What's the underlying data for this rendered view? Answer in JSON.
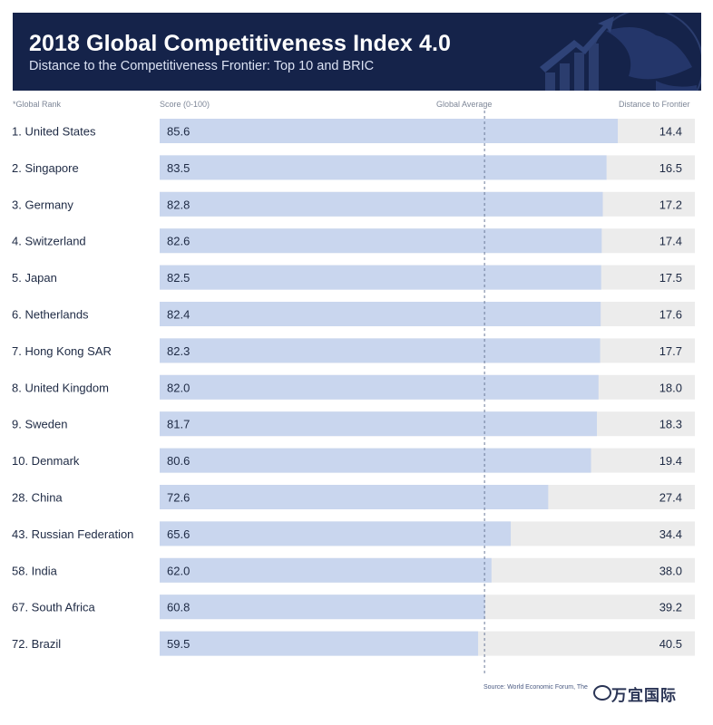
{
  "header": {
    "title": "2018 Global Competitiveness Index 4.0",
    "subtitle": "Distance to the Competitiveness Frontier: Top 10 and BRIC"
  },
  "columns": {
    "rank": "*Global Rank",
    "score": "Score (0-100)",
    "average": "Global Average",
    "distance": "Distance to Frontier"
  },
  "source": "Source: World Economic Forum, The",
  "watermark": "万宜国际",
  "chart_data": {
    "type": "bar",
    "orientation": "horizontal",
    "stacked": true,
    "xlim": [
      0,
      100
    ],
    "global_average": 60.7,
    "categories": [
      "1. United States",
      "2. Singapore",
      "3. Germany",
      "4. Switzerland",
      "5. Japan",
      "6. Netherlands",
      "7. Hong Kong SAR",
      "8. United Kingdom",
      "9. Sweden",
      "10. Denmark",
      "28. China",
      "43. Russian Federation",
      "58. India",
      "67. South Africa",
      "72. Brazil"
    ],
    "series": [
      {
        "values": [
          85.6,
          83.5,
          82.8,
          82.6,
          82.5,
          82.4,
          82.3,
          82.0,
          81.7,
          80.6,
          72.6,
          65.6,
          62.0,
          60.8,
          59.5
        ],
        "labels": [
          "85.6",
          "83.5",
          "82.8",
          "82.6",
          "82.5",
          "82.4",
          "82.3",
          "82.0",
          "81.7",
          "80.6",
          "72.6",
          "65.6",
          "62.0",
          "60.8",
          "59.5"
        ],
        "color": "#c9d6ee"
      },
      {
        "values": [
          14.4,
          16.5,
          17.2,
          17.4,
          17.5,
          17.6,
          17.7,
          18.0,
          18.3,
          19.4,
          27.4,
          34.4,
          38.0,
          39.2,
          40.5
        ],
        "labels": [
          "14.4",
          "16.5",
          "17.2",
          "17.4",
          "17.5",
          "17.6",
          "17.7",
          "18.0",
          "18.3",
          "19.4",
          "27.4",
          "34.4",
          "38.0",
          "39.2",
          "40.5"
        ],
        "color": "#ececec"
      }
    ],
    "colors": {
      "header": "#15234a",
      "score": "#c9d6ee",
      "distance": "#ececec",
      "average_line": "#6b7a99"
    }
  }
}
